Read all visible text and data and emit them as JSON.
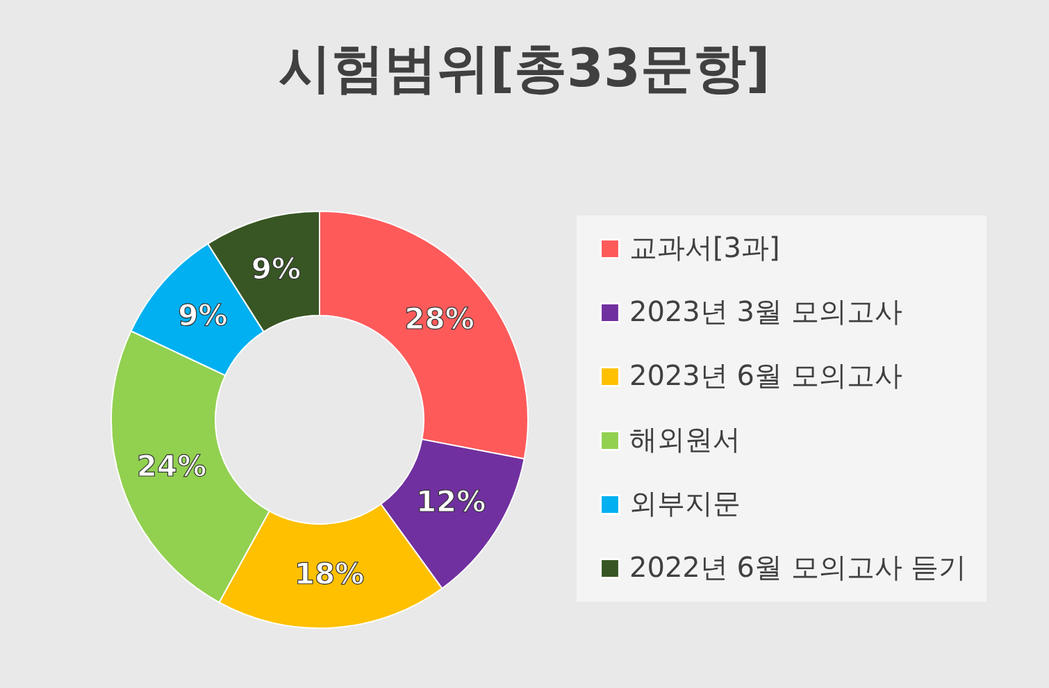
{
  "chart_data": {
    "type": "donut",
    "title": "시험범위[총33문항]",
    "categories": [
      "교과서[3과]",
      "2023년 3월 모의고사",
      "2023년 6월 모의고사",
      "해외원서",
      "외부지문",
      "2022년 6월 모의고사 듣기"
    ],
    "values": [
      28,
      12,
      18,
      24,
      9,
      9
    ],
    "colors": [
      "#ff5a5a",
      "#7030a0",
      "#ffc000",
      "#92d050",
      "#00b0f0",
      "#375623"
    ],
    "value_labels": [
      "28%",
      "12%",
      "18%",
      "24%",
      "9%",
      "9%"
    ],
    "legend": "right"
  }
}
